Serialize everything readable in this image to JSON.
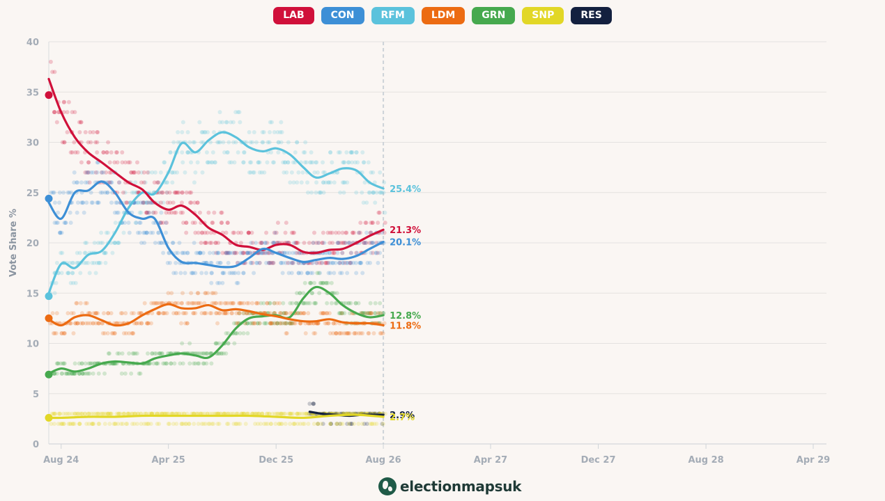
{
  "legend": [
    {
      "label": "LAB",
      "color": "#d0103a"
    },
    {
      "label": "CON",
      "color": "#3d8fd6"
    },
    {
      "label": "RFM",
      "color": "#5bc2dc"
    },
    {
      "label": "LDM",
      "color": "#ec6b12"
    },
    {
      "label": "GRN",
      "color": "#46a94e"
    },
    {
      "label": "SNP",
      "color": "#e2d726"
    },
    {
      "label": "RES",
      "color": "#13203f"
    }
  ],
  "brand": "electionmapsuk",
  "chart_data": {
    "type": "line",
    "title": "",
    "xlabel": "",
    "ylabel": "Vote Share %",
    "ylim": [
      0,
      40
    ],
    "yticks": [
      0,
      5,
      10,
      15,
      20,
      25,
      30,
      35,
      40
    ],
    "xlim": [
      "2024-07-04",
      "2029-05-01"
    ],
    "xticks": [
      {
        "date": "2024-08-01",
        "label": "Aug 24"
      },
      {
        "date": "2025-04-01",
        "label": "Apr 25"
      },
      {
        "date": "2025-12-01",
        "label": "Dec 25"
      },
      {
        "date": "2026-08-01",
        "label": "Aug 26"
      },
      {
        "date": "2027-04-01",
        "label": "Apr 27"
      },
      {
        "date": "2027-12-01",
        "label": "Dec 27"
      },
      {
        "date": "2028-08-01",
        "label": "Aug 28"
      },
      {
        "date": "2029-04-01",
        "label": "Apr 29"
      }
    ],
    "current_date": "2026-08-01",
    "grid": true,
    "series": [
      {
        "name": "RFM",
        "color": "#5bc2dc",
        "election_result": 14.7,
        "end_label": "25.4%",
        "points": [
          [
            "2024-07-04",
            15.0
          ],
          [
            "2024-08-01",
            17.9
          ],
          [
            "2024-09-01",
            17.5
          ],
          [
            "2024-10-01",
            18.8
          ],
          [
            "2024-11-01",
            19.2
          ],
          [
            "2024-12-01",
            21.0
          ],
          [
            "2025-01-01",
            23.5
          ],
          [
            "2025-02-01",
            25.0
          ],
          [
            "2025-03-01",
            24.9
          ],
          [
            "2025-04-01",
            27.0
          ],
          [
            "2025-05-01",
            29.9
          ],
          [
            "2025-06-01",
            29.0
          ],
          [
            "2025-07-01",
            30.2
          ],
          [
            "2025-08-01",
            31.0
          ],
          [
            "2025-09-01",
            30.5
          ],
          [
            "2025-10-01",
            29.5
          ],
          [
            "2025-11-01",
            29.1
          ],
          [
            "2025-12-01",
            29.4
          ],
          [
            "2026-01-01",
            28.8
          ],
          [
            "2026-02-01",
            27.5
          ],
          [
            "2026-03-01",
            26.5
          ],
          [
            "2026-04-01",
            26.9
          ],
          [
            "2026-05-01",
            27.4
          ],
          [
            "2026-06-01",
            27.2
          ],
          [
            "2026-07-01",
            26.0
          ],
          [
            "2026-08-01",
            25.4
          ]
        ]
      },
      {
        "name": "LAB",
        "color": "#d0103a",
        "election_result": 34.7,
        "end_label": "21.3%",
        "points": [
          [
            "2024-07-04",
            36.3
          ],
          [
            "2024-08-01",
            33.0
          ],
          [
            "2024-09-01",
            30.5
          ],
          [
            "2024-10-01",
            29.0
          ],
          [
            "2024-11-01",
            28.0
          ],
          [
            "2024-12-01",
            27.0
          ],
          [
            "2025-01-01",
            26.0
          ],
          [
            "2025-02-01",
            25.3
          ],
          [
            "2025-03-01",
            24.0
          ],
          [
            "2025-04-01",
            23.3
          ],
          [
            "2025-05-01",
            23.7
          ],
          [
            "2025-06-01",
            22.8
          ],
          [
            "2025-07-01",
            21.5
          ],
          [
            "2025-08-01",
            20.8
          ],
          [
            "2025-09-01",
            19.8
          ],
          [
            "2025-10-01",
            19.6
          ],
          [
            "2025-11-01",
            19.3
          ],
          [
            "2025-12-01",
            19.8
          ],
          [
            "2026-01-01",
            19.8
          ],
          [
            "2026-02-01",
            19.1
          ],
          [
            "2026-03-01",
            19.0
          ],
          [
            "2026-04-01",
            19.3
          ],
          [
            "2026-05-01",
            19.4
          ],
          [
            "2026-06-01",
            20.0
          ],
          [
            "2026-07-01",
            20.7
          ],
          [
            "2026-08-01",
            21.3
          ]
        ]
      },
      {
        "name": "CON",
        "color": "#3d8fd6",
        "election_result": 24.4,
        "end_label": "20.1%",
        "points": [
          [
            "2024-07-04",
            24.0
          ],
          [
            "2024-08-01",
            22.4
          ],
          [
            "2024-09-01",
            25.0
          ],
          [
            "2024-10-01",
            25.2
          ],
          [
            "2024-11-01",
            26.1
          ],
          [
            "2024-12-01",
            25.0
          ],
          [
            "2025-01-01",
            23.0
          ],
          [
            "2025-02-01",
            22.4
          ],
          [
            "2025-03-01",
            22.4
          ],
          [
            "2025-04-01",
            19.5
          ],
          [
            "2025-05-01",
            18.1
          ],
          [
            "2025-06-01",
            18.0
          ],
          [
            "2025-07-01",
            17.8
          ],
          [
            "2025-08-01",
            17.6
          ],
          [
            "2025-09-01",
            17.7
          ],
          [
            "2025-10-01",
            18.5
          ],
          [
            "2025-11-01",
            19.4
          ],
          [
            "2025-12-01",
            19.0
          ],
          [
            "2026-01-01",
            18.5
          ],
          [
            "2026-02-01",
            18.1
          ],
          [
            "2026-03-01",
            18.3
          ],
          [
            "2026-04-01",
            18.5
          ],
          [
            "2026-05-01",
            18.4
          ],
          [
            "2026-06-01",
            18.7
          ],
          [
            "2026-07-01",
            19.4
          ],
          [
            "2026-08-01",
            20.1
          ]
        ]
      },
      {
        "name": "GRN",
        "color": "#46a94e",
        "election_result": 6.9,
        "end_label": "12.8%",
        "points": [
          [
            "2024-07-04",
            7.0
          ],
          [
            "2024-08-01",
            7.5
          ],
          [
            "2024-09-01",
            7.2
          ],
          [
            "2024-10-01",
            7.5
          ],
          [
            "2024-11-01",
            8.0
          ],
          [
            "2024-12-01",
            8.2
          ],
          [
            "2025-01-01",
            8.1
          ],
          [
            "2025-02-01",
            8.0
          ],
          [
            "2025-03-01",
            8.5
          ],
          [
            "2025-04-01",
            8.8
          ],
          [
            "2025-05-01",
            9.0
          ],
          [
            "2025-06-01",
            8.8
          ],
          [
            "2025-07-01",
            8.6
          ],
          [
            "2025-08-01",
            9.8
          ],
          [
            "2025-09-01",
            11.5
          ],
          [
            "2025-10-01",
            12.5
          ],
          [
            "2025-11-01",
            12.7
          ],
          [
            "2025-12-01",
            12.8
          ],
          [
            "2026-01-01",
            12.6
          ],
          [
            "2026-02-01",
            14.5
          ],
          [
            "2026-03-01",
            15.6
          ],
          [
            "2026-04-01",
            15.0
          ],
          [
            "2026-05-01",
            13.8
          ],
          [
            "2026-06-01",
            13.0
          ],
          [
            "2026-07-01",
            12.6
          ],
          [
            "2026-08-01",
            12.8
          ]
        ]
      },
      {
        "name": "LDM",
        "color": "#ec6b12",
        "election_result": 12.5,
        "end_label": "11.8%",
        "points": [
          [
            "2024-07-04",
            12.4
          ],
          [
            "2024-08-01",
            11.8
          ],
          [
            "2024-09-01",
            12.6
          ],
          [
            "2024-10-01",
            12.8
          ],
          [
            "2024-11-01",
            12.3
          ],
          [
            "2024-12-01",
            11.8
          ],
          [
            "2025-01-01",
            12.0
          ],
          [
            "2025-02-01",
            12.8
          ],
          [
            "2025-03-01",
            13.4
          ],
          [
            "2025-04-01",
            13.9
          ],
          [
            "2025-05-01",
            13.5
          ],
          [
            "2025-06-01",
            13.5
          ],
          [
            "2025-07-01",
            13.8
          ],
          [
            "2025-08-01",
            13.3
          ],
          [
            "2025-09-01",
            13.4
          ],
          [
            "2025-10-01",
            13.2
          ],
          [
            "2025-11-01",
            12.9
          ],
          [
            "2025-12-01",
            12.7
          ],
          [
            "2026-01-01",
            12.4
          ],
          [
            "2026-02-01",
            12.2
          ],
          [
            "2026-03-01",
            12.2
          ],
          [
            "2026-04-01",
            12.4
          ],
          [
            "2026-05-01",
            12.1
          ],
          [
            "2026-06-01",
            12.0
          ],
          [
            "2026-07-01",
            12.0
          ],
          [
            "2026-08-01",
            11.8
          ]
        ]
      },
      {
        "name": "RES",
        "color": "#13203f",
        "election_result": null,
        "end_label": "2.9%",
        "points": [
          [
            "2026-02-15",
            3.2
          ],
          [
            "2026-03-15",
            3.0
          ],
          [
            "2026-04-15",
            2.9
          ],
          [
            "2026-05-15",
            2.8
          ],
          [
            "2026-06-15",
            2.9
          ],
          [
            "2026-08-01",
            2.9
          ]
        ]
      },
      {
        "name": "SNP",
        "color": "#e2d726",
        "election_result": 2.6,
        "end_label": "2.7%",
        "points": [
          [
            "2024-07-04",
            2.6
          ],
          [
            "2024-08-01",
            2.6
          ],
          [
            "2024-10-01",
            2.7
          ],
          [
            "2024-12-01",
            2.7
          ],
          [
            "2025-02-01",
            2.8
          ],
          [
            "2025-04-01",
            2.8
          ],
          [
            "2025-06-01",
            2.8
          ],
          [
            "2025-08-01",
            2.8
          ],
          [
            "2025-10-01",
            2.8
          ],
          [
            "2025-12-01",
            2.7
          ],
          [
            "2026-02-01",
            2.6
          ],
          [
            "2026-04-01",
            2.8
          ],
          [
            "2026-06-01",
            2.9
          ],
          [
            "2026-08-01",
            2.7
          ]
        ]
      }
    ]
  }
}
